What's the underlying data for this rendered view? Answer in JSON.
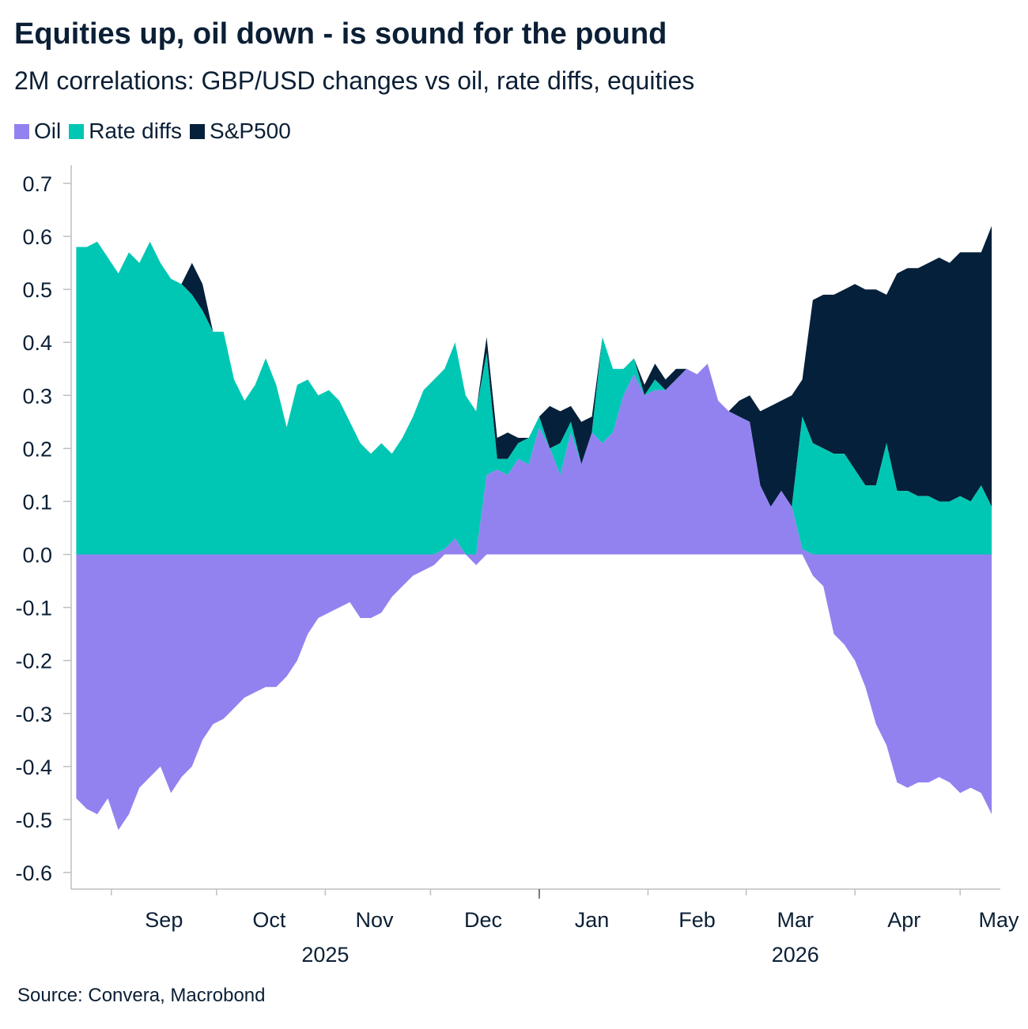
{
  "title": "Equities up, oil down - is sound for the pound",
  "subtitle": "2M correlations: GBP/USD changes vs oil, rate diffs, equities",
  "source": "Source: Convera, Macrobond",
  "colors": {
    "oil": "#9282f0",
    "rate_diffs": "#00c7b4",
    "sp500": "#05203a",
    "axis": "#bfbfbf",
    "text": "#0b1f35"
  },
  "chart_data": {
    "type": "area",
    "stacked": true,
    "legend_position": "top-left",
    "grid": false,
    "ylim": [
      -0.6,
      0.7
    ],
    "yticks": [
      "0.7",
      "0.6",
      "0.5",
      "0.4",
      "0.3",
      "0.2",
      "0.1",
      "0.0",
      "-0.1",
      "-0.2",
      "-0.3",
      "-0.4",
      "-0.5",
      "-0.6"
    ],
    "ytick_values": [
      0.7,
      0.6,
      0.5,
      0.4,
      0.3,
      0.2,
      0.1,
      0.0,
      -0.1,
      -0.2,
      -0.3,
      -0.4,
      -0.5,
      -0.6
    ],
    "xlim": [
      "2025-08-21",
      "2026-05-12"
    ],
    "month_labels": [
      {
        "label": "Sep",
        "date": "2025-09-16"
      },
      {
        "label": "Oct",
        "date": "2025-10-16"
      },
      {
        "label": "Nov",
        "date": "2025-11-15"
      },
      {
        "label": "Dec",
        "date": "2025-12-16"
      },
      {
        "label": "Jan",
        "date": "2026-01-16"
      },
      {
        "label": "Feb",
        "date": "2026-02-15"
      },
      {
        "label": "Mar",
        "date": "2026-03-15"
      },
      {
        "label": "Apr",
        "date": "2026-04-15"
      },
      {
        "label": "May",
        "date": "2026-05-12"
      }
    ],
    "month_ticks": [
      "2025-09-01",
      "2025-10-01",
      "2025-11-01",
      "2025-12-01",
      "2026-01-01",
      "2026-02-01",
      "2026-03-01",
      "2026-04-01",
      "2026-05-01"
    ],
    "year_labels": [
      {
        "label": "2025",
        "date": "2025-11-01"
      },
      {
        "label": "2026",
        "date": "2026-03-15"
      }
    ],
    "year_divider": "2026-01-01",
    "series": [
      {
        "name": "Oil",
        "x": [
          "2025-08-22",
          "2025-08-25",
          "2025-08-28",
          "2025-08-31",
          "2025-09-03",
          "2025-09-06",
          "2025-09-09",
          "2025-09-12",
          "2025-09-15",
          "2025-09-18",
          "2025-09-21",
          "2025-09-24",
          "2025-09-27",
          "2025-09-30",
          "2025-10-03",
          "2025-10-06",
          "2025-10-09",
          "2025-10-12",
          "2025-10-15",
          "2025-10-18",
          "2025-10-21",
          "2025-10-24",
          "2025-10-27",
          "2025-10-30",
          "2025-11-02",
          "2025-11-05",
          "2025-11-08",
          "2025-11-11",
          "2025-11-14",
          "2025-11-17",
          "2025-11-20",
          "2025-11-23",
          "2025-11-26",
          "2025-11-29",
          "2025-12-02",
          "2025-12-05",
          "2025-12-08",
          "2025-12-11",
          "2025-12-14",
          "2025-12-17",
          "2025-12-20",
          "2025-12-23",
          "2025-12-26",
          "2025-12-29",
          "2026-01-01",
          "2026-01-04",
          "2026-01-07",
          "2026-01-10",
          "2026-01-13",
          "2026-01-16",
          "2026-01-19",
          "2026-01-22",
          "2026-01-25",
          "2026-01-28",
          "2026-01-31",
          "2026-02-03",
          "2026-02-06",
          "2026-02-09",
          "2026-02-12",
          "2026-02-15",
          "2026-02-18",
          "2026-02-21",
          "2026-02-24",
          "2026-02-27",
          "2026-03-02",
          "2026-03-05",
          "2026-03-08",
          "2026-03-11",
          "2026-03-14",
          "2026-03-17",
          "2026-03-20",
          "2026-03-23",
          "2026-03-26",
          "2026-03-29",
          "2026-04-01",
          "2026-04-04",
          "2026-04-07",
          "2026-04-10",
          "2026-04-13",
          "2026-04-16",
          "2026-04-19",
          "2026-04-22",
          "2026-04-25",
          "2026-04-28",
          "2026-05-01",
          "2026-05-04",
          "2026-05-07",
          "2026-05-10"
        ],
        "values": [
          -0.46,
          -0.48,
          -0.49,
          -0.46,
          -0.52,
          -0.49,
          -0.44,
          -0.42,
          -0.4,
          -0.45,
          -0.42,
          -0.4,
          -0.35,
          -0.32,
          -0.31,
          -0.29,
          -0.27,
          -0.26,
          -0.25,
          -0.25,
          -0.23,
          -0.2,
          -0.15,
          -0.12,
          -0.11,
          -0.1,
          -0.09,
          -0.12,
          -0.12,
          -0.11,
          -0.08,
          -0.06,
          -0.04,
          -0.03,
          -0.02,
          0.01,
          0.03,
          0.0,
          -0.02,
          0.15,
          0.16,
          0.15,
          0.18,
          0.17,
          0.24,
          0.2,
          0.15,
          0.23,
          0.17,
          0.23,
          0.21,
          0.23,
          0.3,
          0.34,
          0.3,
          0.31,
          0.31,
          0.33,
          0.35,
          0.34,
          0.36,
          0.29,
          0.27,
          0.26,
          0.25,
          0.13,
          0.09,
          0.12,
          0.09,
          0.01,
          -0.04,
          -0.06,
          -0.15,
          -0.17,
          -0.2,
          -0.25,
          -0.32,
          -0.36,
          -0.43,
          -0.44,
          -0.43,
          -0.43,
          -0.42,
          -0.43,
          -0.45,
          -0.44,
          -0.45,
          -0.49
        ]
      },
      {
        "name": "Rate diffs",
        "x": [
          "2025-08-22",
          "2025-08-25",
          "2025-08-28",
          "2025-08-31",
          "2025-09-03",
          "2025-09-06",
          "2025-09-09",
          "2025-09-12",
          "2025-09-15",
          "2025-09-18",
          "2025-09-21",
          "2025-09-24",
          "2025-09-27",
          "2025-09-30",
          "2025-10-03",
          "2025-10-06",
          "2025-10-09",
          "2025-10-12",
          "2025-10-15",
          "2025-10-18",
          "2025-10-21",
          "2025-10-24",
          "2025-10-27",
          "2025-10-30",
          "2025-11-02",
          "2025-11-05",
          "2025-11-08",
          "2025-11-11",
          "2025-11-14",
          "2025-11-17",
          "2025-11-20",
          "2025-11-23",
          "2025-11-26",
          "2025-11-29",
          "2025-12-02",
          "2025-12-05",
          "2025-12-08",
          "2025-12-11",
          "2025-12-14",
          "2025-12-17",
          "2025-12-20",
          "2025-12-23",
          "2025-12-26",
          "2025-12-29",
          "2026-01-01",
          "2026-01-04",
          "2026-01-07",
          "2026-01-10",
          "2026-01-13",
          "2026-01-16",
          "2026-01-19",
          "2026-01-22",
          "2026-01-25",
          "2026-01-28",
          "2026-01-31",
          "2026-02-03",
          "2026-02-06",
          "2026-02-09",
          "2026-02-12",
          "2026-02-15",
          "2026-02-18",
          "2026-02-21",
          "2026-02-24",
          "2026-02-27",
          "2026-03-02",
          "2026-03-05",
          "2026-03-08",
          "2026-03-11",
          "2026-03-14",
          "2026-03-17",
          "2026-03-20",
          "2026-03-23",
          "2026-03-26",
          "2026-03-29",
          "2026-04-01",
          "2026-04-04",
          "2026-04-07",
          "2026-04-10",
          "2026-04-13",
          "2026-04-16",
          "2026-04-19",
          "2026-04-22",
          "2026-04-25",
          "2026-04-28",
          "2026-05-01",
          "2026-05-04",
          "2026-05-07",
          "2026-05-10"
        ],
        "values": [
          0.58,
          0.58,
          0.59,
          0.56,
          0.53,
          0.57,
          0.55,
          0.59,
          0.55,
          0.52,
          0.51,
          0.49,
          0.46,
          0.42,
          0.42,
          0.33,
          0.29,
          0.32,
          0.37,
          0.32,
          0.24,
          0.32,
          0.33,
          0.3,
          0.31,
          0.29,
          0.25,
          0.21,
          0.19,
          0.21,
          0.19,
          0.22,
          0.26,
          0.31,
          0.33,
          0.34,
          0.37,
          0.3,
          0.27,
          0.23,
          0.02,
          0.03,
          0.03,
          0.05,
          0.02,
          0.0,
          0.06,
          0.02,
          0.0,
          0.0,
          0.2,
          0.12,
          0.05,
          0.03,
          0.0,
          0.02,
          0.0,
          0.0,
          0.0,
          0.0,
          0.0,
          0.0,
          0.0,
          0.0,
          0.0,
          0.0,
          0.0,
          0.0,
          0.0,
          0.25,
          0.21,
          0.2,
          0.19,
          0.19,
          0.16,
          0.13,
          0.13,
          0.21,
          0.12,
          0.12,
          0.11,
          0.11,
          0.1,
          0.1,
          0.11,
          0.1,
          0.13,
          0.09
        ]
      },
      {
        "name": "S&P500",
        "x": [
          "2025-08-22",
          "2025-08-25",
          "2025-08-28",
          "2025-08-31",
          "2025-09-03",
          "2025-09-06",
          "2025-09-09",
          "2025-09-12",
          "2025-09-15",
          "2025-09-18",
          "2025-09-21",
          "2025-09-24",
          "2025-09-27",
          "2025-09-30",
          "2025-10-03",
          "2025-10-06",
          "2025-10-09",
          "2025-10-12",
          "2025-10-15",
          "2025-10-18",
          "2025-10-21",
          "2025-10-24",
          "2025-10-27",
          "2025-10-30",
          "2025-11-02",
          "2025-11-05",
          "2025-11-08",
          "2025-11-11",
          "2025-11-14",
          "2025-11-17",
          "2025-11-20",
          "2025-11-23",
          "2025-11-26",
          "2025-11-29",
          "2025-12-02",
          "2025-12-05",
          "2025-12-08",
          "2025-12-11",
          "2025-12-14",
          "2025-12-17",
          "2025-12-20",
          "2025-12-23",
          "2025-12-26",
          "2025-12-29",
          "2026-01-01",
          "2026-01-04",
          "2026-01-07",
          "2026-01-10",
          "2026-01-13",
          "2026-01-16",
          "2026-01-19",
          "2026-01-22",
          "2026-01-25",
          "2026-01-28",
          "2026-01-31",
          "2026-02-03",
          "2026-02-06",
          "2026-02-09",
          "2026-02-12",
          "2026-02-15",
          "2026-02-18",
          "2026-02-21",
          "2026-02-24",
          "2026-02-27",
          "2026-03-02",
          "2026-03-05",
          "2026-03-08",
          "2026-03-11",
          "2026-03-14",
          "2026-03-17",
          "2026-03-20",
          "2026-03-23",
          "2026-03-26",
          "2026-03-29",
          "2026-04-01",
          "2026-04-04",
          "2026-04-07",
          "2026-04-10",
          "2026-04-13",
          "2026-04-16",
          "2026-04-19",
          "2026-04-22",
          "2026-04-25",
          "2026-04-28",
          "2026-05-01",
          "2026-05-04",
          "2026-05-07",
          "2026-05-10"
        ],
        "values": [
          0.0,
          0.0,
          0.0,
          0.0,
          0.0,
          0.0,
          0.0,
          0.0,
          0.0,
          0.0,
          0.0,
          0.06,
          0.05,
          0.0,
          0.0,
          0.0,
          0.0,
          0.0,
          0.0,
          0.0,
          0.0,
          0.0,
          0.0,
          0.0,
          0.0,
          0.0,
          0.0,
          0.0,
          0.0,
          0.0,
          0.0,
          0.0,
          0.0,
          0.0,
          0.0,
          0.0,
          0.0,
          0.0,
          0.0,
          0.03,
          0.04,
          0.05,
          0.01,
          0.0,
          0.0,
          0.08,
          0.06,
          0.03,
          0.08,
          0.03,
          0.0,
          0.0,
          0.0,
          0.0,
          0.02,
          0.03,
          0.02,
          0.02,
          0.0,
          0.0,
          0.0,
          0.0,
          0.0,
          0.03,
          0.05,
          0.14,
          0.19,
          0.17,
          0.21,
          0.07,
          0.27,
          0.29,
          0.3,
          0.31,
          0.35,
          0.37,
          0.37,
          0.28,
          0.41,
          0.42,
          0.43,
          0.44,
          0.46,
          0.45,
          0.46,
          0.47,
          0.44,
          0.53
        ]
      }
    ]
  }
}
